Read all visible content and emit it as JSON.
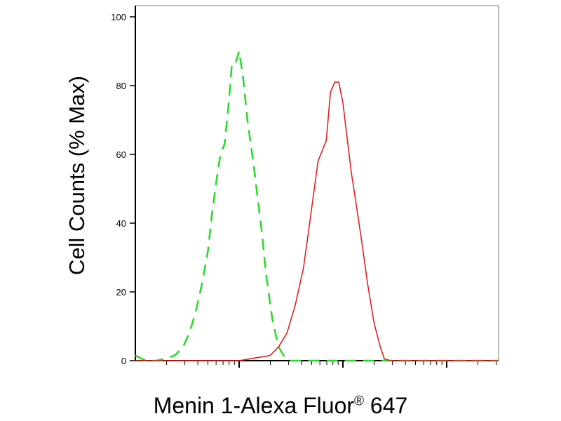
{
  "chart_data": {
    "type": "line",
    "xlabel": "Menin 1-Alexa Fluor",
    "xlabel_superscript": "®",
    "xlabel_suffix": "647",
    "ylabel": "Cell Counts (% Max)",
    "x_scale": "log",
    "xlim_decades": [
      0,
      3.5
    ],
    "ylim": [
      0,
      100
    ],
    "y_ticks": [
      0,
      20,
      40,
      60,
      80,
      100
    ],
    "grid": false,
    "series": [
      {
        "style": "dashed",
        "color": "#22dd22",
        "x": [
          0.0,
          0.1,
          0.2,
          0.28,
          0.38,
          0.46,
          0.52,
          0.58,
          0.64,
          0.7,
          0.74,
          0.78,
          0.82,
          0.86,
          0.9,
          0.93,
          0.96,
          1.0,
          1.04,
          1.08,
          1.14,
          1.18,
          1.22,
          1.26,
          1.32,
          1.38,
          1.44,
          1.5,
          1.6,
          1.7,
          1.9,
          2.2,
          2.6,
          3.0,
          3.5
        ],
        "y": [
          1.5,
          0,
          0,
          0.5,
          1.5,
          4,
          8,
          14,
          22,
          32,
          43,
          52,
          60,
          63,
          75,
          86,
          86,
          90,
          82,
          70,
          57,
          47,
          37,
          25,
          12,
          4,
          1,
          0,
          0,
          0,
          0,
          0,
          0,
          0,
          0
        ]
      },
      {
        "style": "solid",
        "color": "#dd2222",
        "x": [
          0.0,
          0.5,
          1.0,
          1.1,
          1.2,
          1.3,
          1.38,
          1.46,
          1.54,
          1.62,
          1.68,
          1.76,
          1.8,
          1.84,
          1.88,
          1.92,
          1.96,
          2.0,
          2.04,
          2.08,
          2.12,
          2.18,
          2.24,
          2.3,
          2.36,
          2.4,
          2.46,
          2.54,
          2.6,
          3.0,
          3.5
        ],
        "y": [
          0,
          0,
          0,
          0.5,
          1,
          1.5,
          4,
          8,
          16,
          27,
          40,
          58,
          61,
          64,
          78,
          81,
          81,
          75,
          65,
          55,
          47,
          35,
          22,
          11,
          4,
          0.5,
          0,
          0,
          0,
          0,
          0
        ]
      }
    ]
  }
}
